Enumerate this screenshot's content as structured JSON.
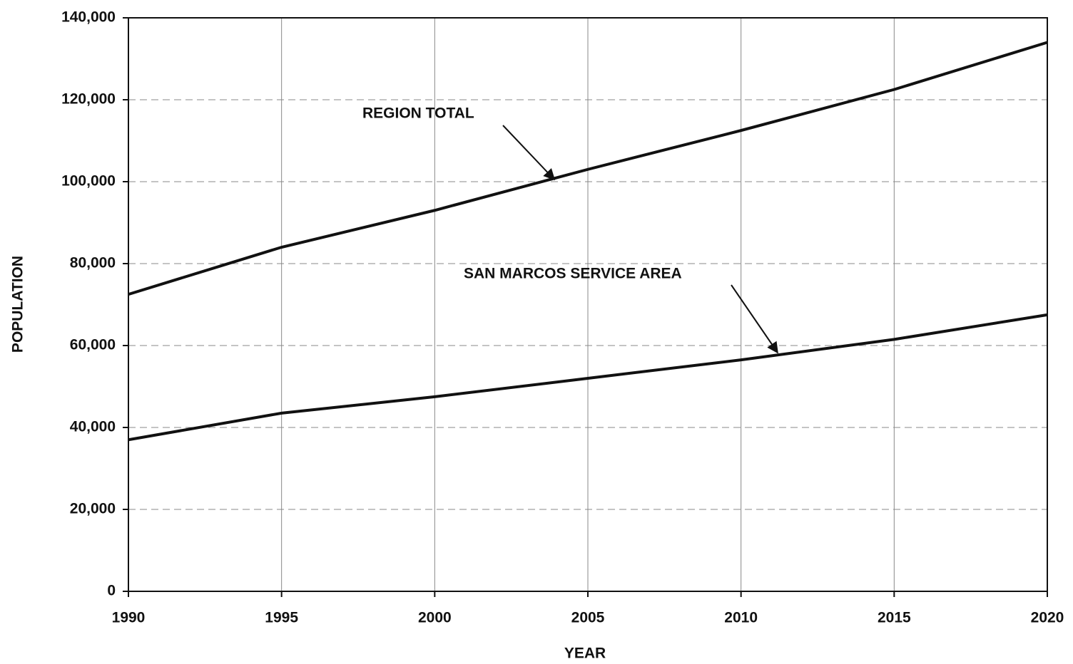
{
  "chart_data": {
    "type": "line",
    "x_label": "YEAR",
    "y_label": "POPULATION",
    "x": [
      1990,
      1995,
      2000,
      2005,
      2010,
      2015,
      2020
    ],
    "series": [
      {
        "name": "REGION TOTAL",
        "color": "#111111",
        "values": [
          72500,
          84000,
          93000,
          103000,
          112500,
          122500,
          134000
        ]
      },
      {
        "name": "SAN MARCOS SERVICE AREA",
        "color": "#111111",
        "values": [
          37000,
          43500,
          47500,
          52000,
          56500,
          61500,
          67500
        ]
      }
    ],
    "xlim": [
      1990,
      2020
    ],
    "xticks": [
      1990,
      1995,
      2000,
      2005,
      2010,
      2015,
      2020
    ],
    "ylim": [
      0,
      140000
    ],
    "yticks": [
      0,
      {
        "value": 20000,
        "label": "20,000"
      },
      {
        "value": 40000,
        "label": "40,000"
      },
      {
        "value": 60000,
        "label": "60,000"
      },
      {
        "value": 80000,
        "label": "80,000"
      },
      {
        "value": 100000,
        "label": "100,000"
      },
      {
        "value": 120000,
        "label": "120,000"
      },
      {
        "value": 140000,
        "label": "140,000"
      }
    ],
    "grid": true
  }
}
